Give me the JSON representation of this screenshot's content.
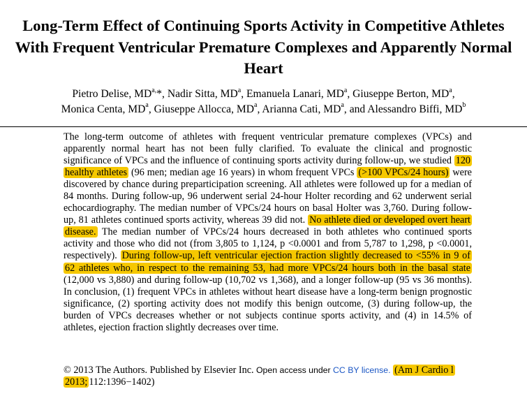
{
  "paper": {
    "title": "Long-Term Effect of Continuing Sports Activity in Competitive Athletes With Frequent Ventricular Premature Complexes and Apparently Normal Heart",
    "authors": [
      {
        "name": "Pietro Delise, MD",
        "sup": "a,",
        "star": "*",
        "sep": ", "
      },
      {
        "name": "Nadir Sitta, MD",
        "sup": "a",
        "sep": ", "
      },
      {
        "name": "Emanuela Lanari, MD",
        "sup": "a",
        "sep": ", "
      },
      {
        "name": "Giuseppe Berton, MD",
        "sup": "a",
        "sep": ", "
      },
      {
        "name": "Monica Centa, MD",
        "sup": "a",
        "sep": ", "
      },
      {
        "name": "Giuseppe Allocca, MD",
        "sup": "a",
        "sep": ", "
      },
      {
        "name": "Arianna Cati, MD",
        "sup": "a",
        "sep": ", and "
      },
      {
        "name": "Alessandro Biffi, MD",
        "sup": "b",
        "sep": ""
      }
    ]
  },
  "abstract": {
    "t1": "The long-term outcome of athletes with frequent ventricular premature complexes (VPCs) and apparently normal heart has not been fully clarified. To evaluate the clinical and prognostic significance of VPCs and the influence of continuing sports activity during follow-up, we studied ",
    "h1": "120 healthy athletes",
    "t2": " (96 men; median age 16 years) in whom frequent VPCs ",
    "h2": "(>100 VPCs/24 hours)",
    "t3": " were discovered by chance during preparticipation screening. All athletes were followed up for a median of 84 months. During follow-up, 96 underwent serial 24-hour Holter recording and 62 underwent serial echocardiography. The median number of VPCs/24 hours on basal Holter was 3,760. During follow-up, 81 athletes continued sports activity, whereas 39 did not. ",
    "h3": "No athlete died or developed overt heart disease.",
    "t4": " The median number of VPCs/24 hours decreased in both athletes who continued sports activity and those who did not (from 3,805 to 1,124, p <0.0001 and from 5,787 to 1,298, p <0.0001, respectively). ",
    "h4": "During follow-up, left ventricular ejection fraction slightly decreased to <55% in 9 of 62 athletes who, in respect to the remaining 53, had more VPCs/24 hours both in the basal state",
    "t5": " (12,000 vs 3,880) and during follow-up (10,702 vs 1,368), and a longer follow-up (95 vs 36 months). In conclusion, (1) frequent VPCs in athletes without heart disease have a long-term benign prognostic significance, (2) sporting activity does not modify this benign outcome, (3) during follow-up, the burden of VPCs decreases whether or not subjects continue sports activity, and (4) in 14.5% of athletes, ejection fraction slightly decreases over time."
  },
  "footer": {
    "copyright": "© 2013 The Authors. Published by Elsevier Inc.",
    "open_access": " Open access under ",
    "license": "CC BY license.",
    "citation_hl": "(Am J Cardio l 2013;",
    "citation_rest": "112:1396−1402)"
  },
  "colors": {
    "highlight": "#f6c800",
    "link": "#1a56c4"
  }
}
